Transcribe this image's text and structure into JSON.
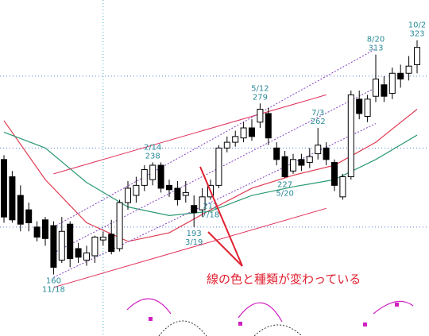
{
  "chart_data": {
    "type": "candlestick",
    "open": [
      240,
      228,
      215,
      205,
      193,
      198,
      194,
      170,
      195,
      178,
      170,
      173,
      184,
      188,
      178,
      210,
      215,
      222,
      226,
      236,
      222,
      220,
      215,
      208,
      205,
      214,
      222,
      248,
      252,
      255,
      262,
      266,
      272,
      248,
      242,
      232,
      240,
      238,
      244,
      248,
      238,
      214,
      228,
      282,
      270,
      284,
      292,
      286,
      300,
      300,
      306
    ],
    "high": [
      243,
      232,
      222,
      210,
      197,
      200,
      197,
      200,
      197,
      182,
      180,
      187,
      190,
      198,
      212,
      225,
      228,
      236,
      238,
      238,
      226,
      225,
      225,
      215,
      220,
      226,
      250,
      256,
      260,
      266,
      268,
      279,
      276,
      252,
      246,
      244,
      244,
      248,
      262,
      252,
      240,
      230,
      288,
      288,
      285,
      313,
      298,
      304,
      306,
      312,
      323
    ],
    "low": [
      196,
      196,
      190,
      190,
      183,
      180,
      160,
      168,
      165,
      168,
      166,
      168,
      180,
      174,
      176,
      205,
      210,
      218,
      222,
      217,
      214,
      208,
      210,
      193,
      200,
      212,
      220,
      245,
      249,
      252,
      253,
      262,
      250,
      236,
      227,
      230,
      232,
      234,
      240,
      236,
      218,
      212,
      226,
      268,
      266,
      280,
      280,
      282,
      290,
      295,
      300
    ],
    "close": [
      200,
      198,
      195,
      196,
      186,
      185,
      165,
      190,
      171,
      172,
      175,
      186,
      186,
      176,
      210,
      220,
      222,
      233,
      236,
      220,
      219,
      212,
      217,
      203,
      214,
      222,
      248,
      252,
      256,
      262,
      256,
      275,
      255,
      240,
      228,
      240,
      236,
      242,
      250,
      240,
      222,
      228,
      285,
      272,
      282,
      296,
      284,
      300,
      296,
      305,
      318
    ],
    "ylim": [
      152,
      351
    ],
    "ygrid": [
      298,
      248,
      193
    ],
    "xgrid": [
      12
    ],
    "moving_averages": [
      {
        "color": "#e03a50",
        "x": [
          0,
          5,
          10,
          15,
          20,
          25,
          30,
          35,
          40,
          45,
          50
        ],
        "values": [
          267,
          226,
          196,
          183,
          189,
          205,
          220,
          229,
          236,
          252,
          275
        ]
      },
      {
        "color": "#2a9a70",
        "x": [
          0,
          5,
          10,
          15,
          20,
          25,
          30,
          35,
          40,
          45,
          50
        ],
        "values": [
          259,
          248,
          224,
          207,
          201,
          204,
          215,
          221,
          226,
          240,
          257
        ]
      }
    ],
    "trend_lines": [
      {
        "color": "#e0305a",
        "dashed": false,
        "x": [
          6,
          39
        ],
        "values": [
          230,
          285
        ]
      },
      {
        "color": "#e0305a",
        "dashed": false,
        "x": [
          6,
          39
        ],
        "values": [
          151,
          206
        ]
      },
      {
        "color": "#8040c0",
        "dashed": true,
        "x": [
          6,
          45
        ],
        "values": [
          193,
          317
        ]
      },
      {
        "color": "#8040c0",
        "dashed": true,
        "x": [
          6,
          45
        ],
        "values": [
          175,
          290
        ]
      },
      {
        "color": "#8040c0",
        "dashed": true,
        "x": [
          6,
          45
        ],
        "values": [
          158,
          265
        ]
      }
    ],
    "peaks": [
      {
        "date": "11/18",
        "price": 160,
        "kind": "low"
      },
      {
        "date": "2/14",
        "price": 238,
        "kind": "high"
      },
      {
        "date": "3/19",
        "price": 193,
        "kind": "low"
      },
      {
        "date": "5/12",
        "price": 279,
        "kind": "high"
      },
      {
        "date": "5/20",
        "price": 227,
        "kind": "low"
      },
      {
        "date": "7/3",
        "price": 262,
        "kind": "high"
      },
      {
        "date": "7/18",
        "price": 212,
        "kind": "low"
      },
      {
        "date": "8/20",
        "price": 313,
        "kind": "high"
      },
      {
        "date": "10/2",
        "price": 323,
        "kind": "high"
      }
    ],
    "annotation": "線の色と種類が変わっている"
  }
}
